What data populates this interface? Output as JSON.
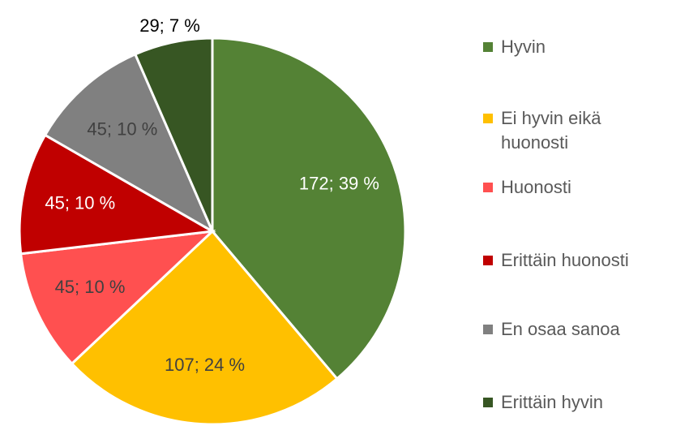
{
  "chart_data": {
    "type": "pie",
    "categories": [
      "Hyvin",
      "Ei hyvin eikä huonosti",
      "Huonosti",
      "Erittäin huonosti",
      "En osaa sanoa",
      "Erittäin hyvin"
    ],
    "values": [
      172,
      107,
      45,
      45,
      45,
      29
    ],
    "value_labels": [
      "172; 39 %",
      "107; 24 %",
      "45; 10 %",
      "45; 10 %",
      "45; 10 %",
      "29; 7 %"
    ],
    "colors": [
      "#548235",
      "#ffc000",
      "#ff5050",
      "#c00000",
      "#808080",
      "#375623"
    ],
    "legend": "right"
  }
}
